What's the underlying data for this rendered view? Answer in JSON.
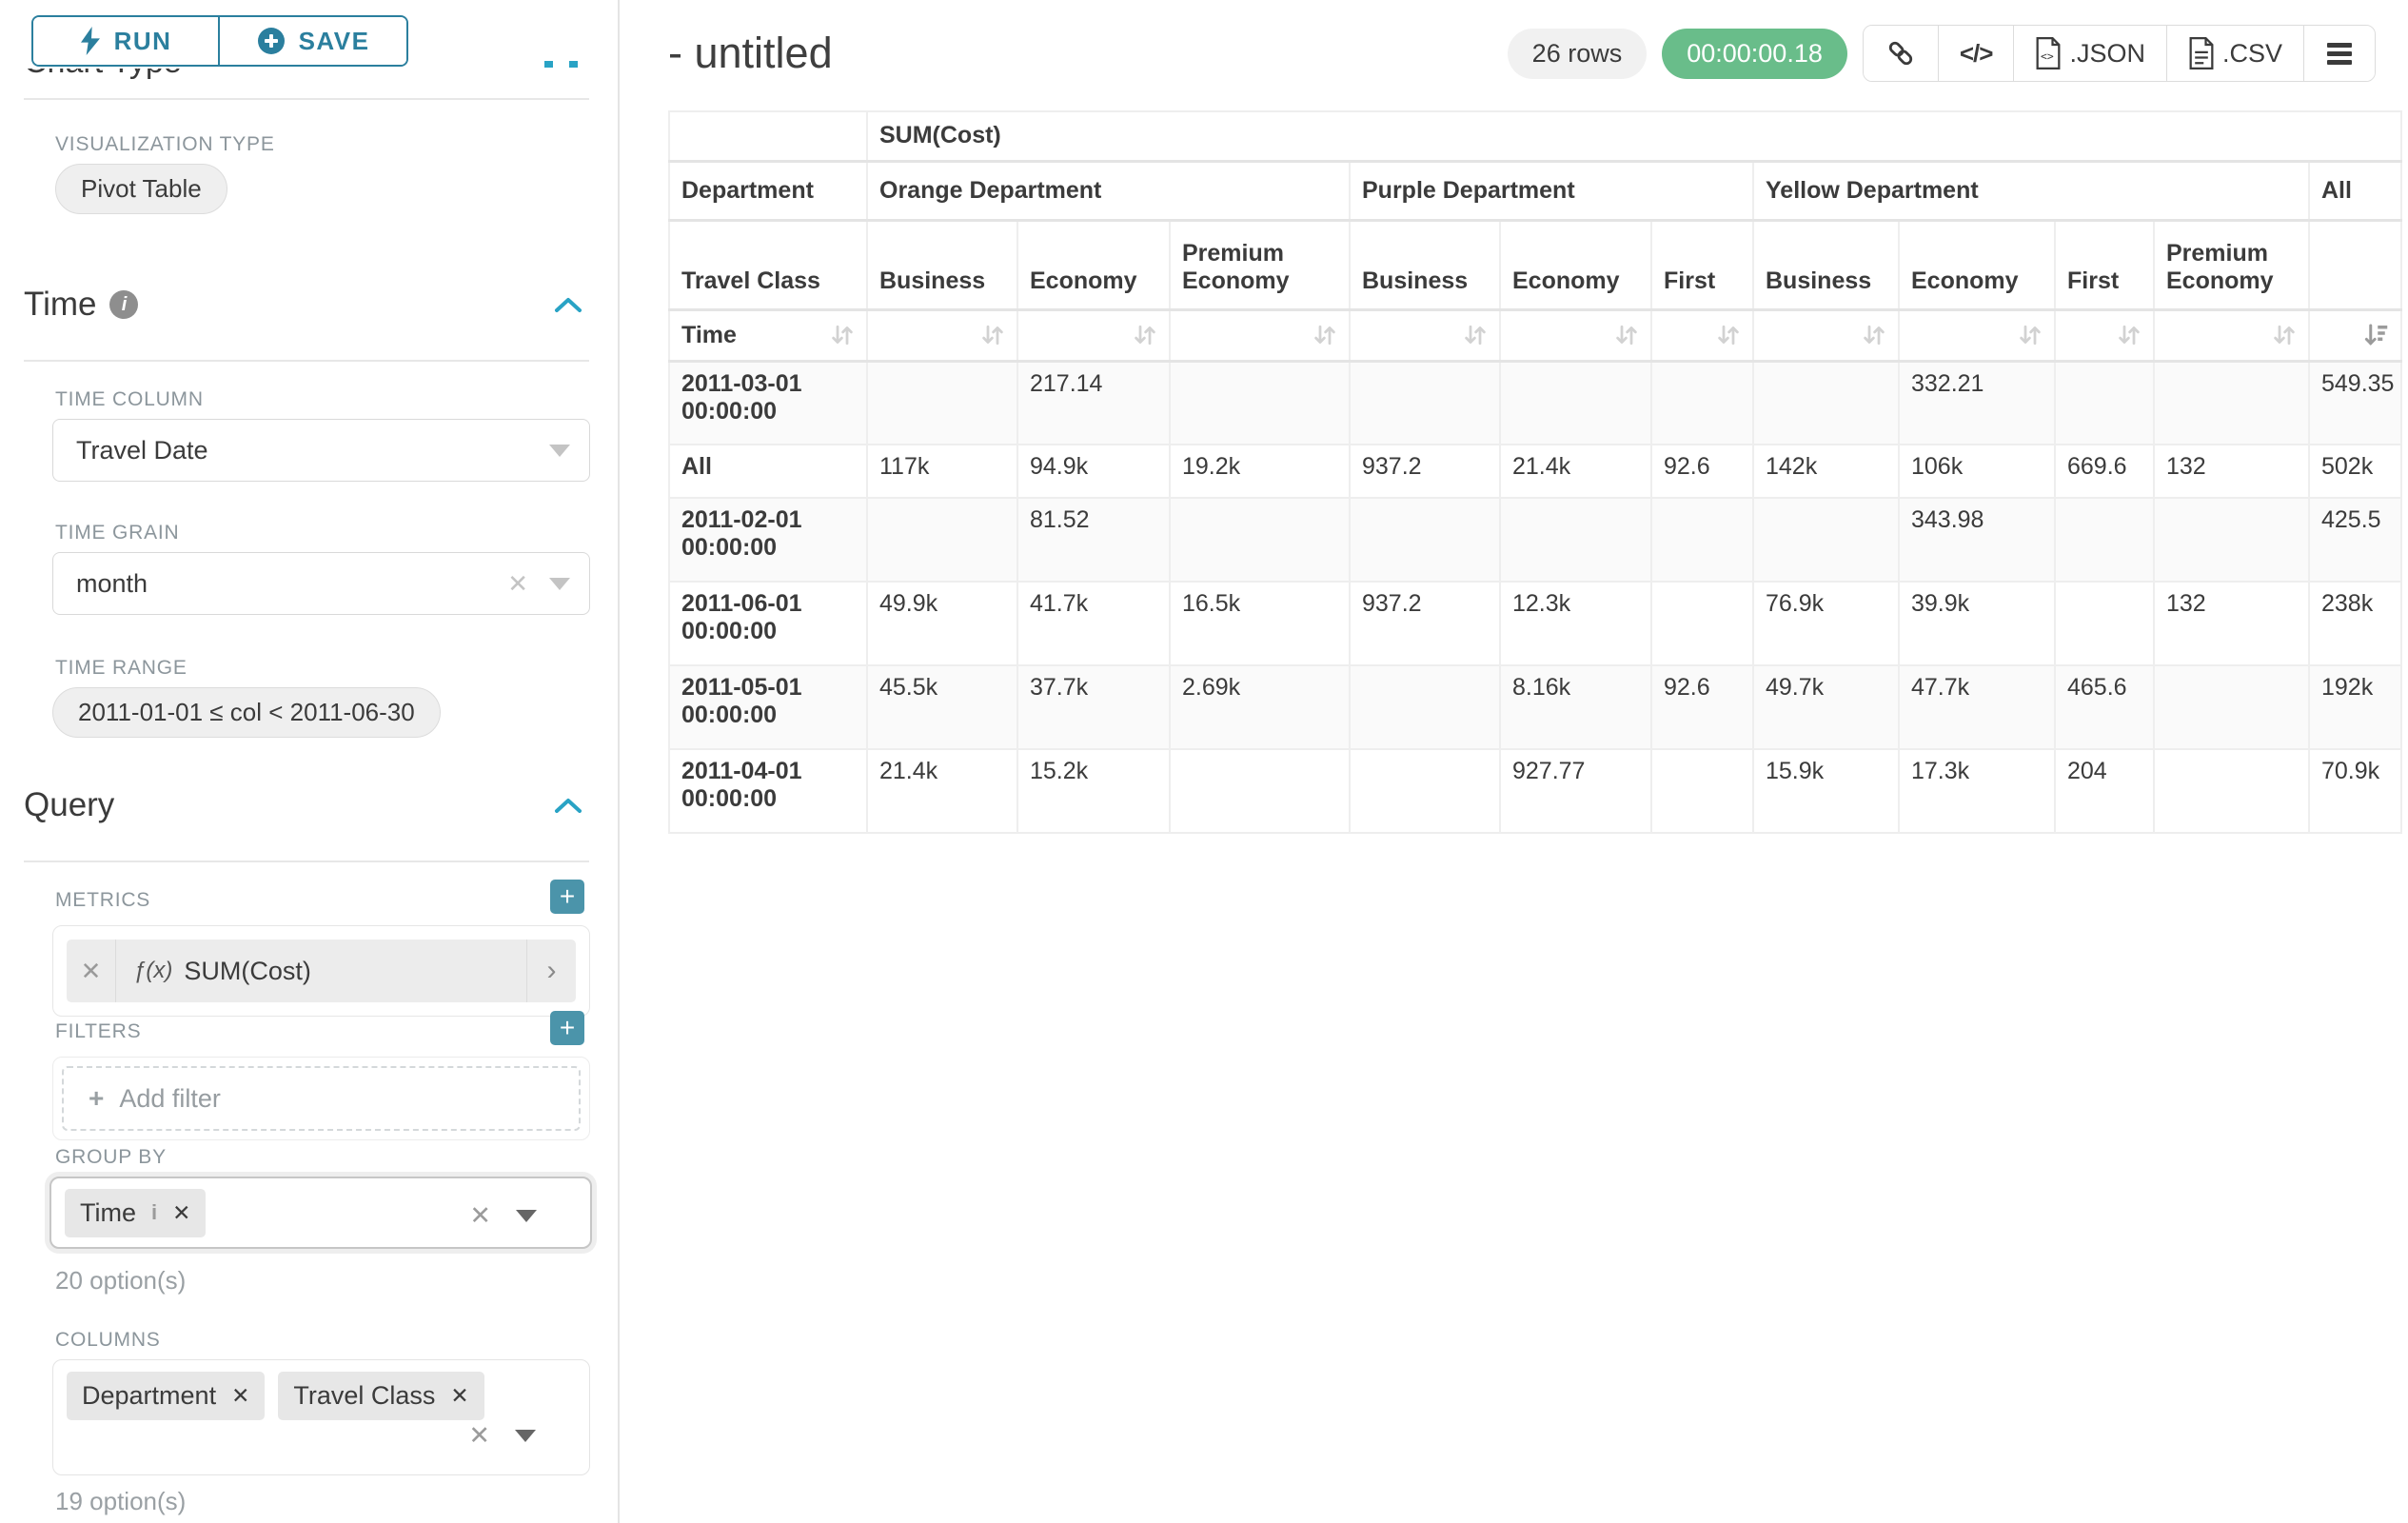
{
  "toolbar": {
    "run_label": "RUN",
    "save_label": "SAVE"
  },
  "sidebar": {
    "chart_type_heading": "Chart Type",
    "visualization_type_label": "VISUALIZATION TYPE",
    "visualization_type_value": "Pivot Table",
    "time_section": {
      "title": "Time",
      "time_column_label": "TIME COLUMN",
      "time_column_value": "Travel Date",
      "time_grain_label": "TIME GRAIN",
      "time_grain_value": "month",
      "time_range_label": "TIME RANGE",
      "time_range_value": "2011-01-01 ≤ col < 2011-06-30"
    },
    "query_section": {
      "title": "Query",
      "metrics_label": "METRICS",
      "metric_fx": "ƒ(x)",
      "metric_value": "SUM(Cost)",
      "filters_label": "FILTERS",
      "add_filter_label": "Add filter",
      "group_by_label": "GROUP BY",
      "group_by_chips": [
        "Time"
      ],
      "group_by_options_note": "20 option(s)",
      "columns_label": "COLUMNS",
      "columns_chips": [
        "Department",
        "Travel Class"
      ],
      "columns_options_note": "19 option(s)"
    }
  },
  "header": {
    "title": "- untitled",
    "rows_badge": "26 rows",
    "timer": "00:00:00.18",
    "json_label": ".JSON",
    "csv_label": ".CSV"
  },
  "icons": {
    "run": "lightning-bolt",
    "save": "plus-circle",
    "metrics_add": "plus-square",
    "filters_add": "plus-square",
    "section_collapse": "chevron-up",
    "time_info": "info-circle",
    "share": "link",
    "embed": "code",
    "json_export": "file-json",
    "csv_export": "file-csv",
    "menu": "hamburger",
    "sort": "sort-arrows",
    "sort_active": "sort-descending"
  },
  "pivot": {
    "metric_header": "SUM(Cost)",
    "department_label": "Department",
    "travel_class_label": "Travel Class",
    "time_label": "Time",
    "departments": [
      {
        "name": "Orange Department",
        "span": 3
      },
      {
        "name": "Purple Department",
        "span": 3
      },
      {
        "name": "Yellow Department",
        "span": 4
      },
      {
        "name": "All",
        "span": 1
      }
    ],
    "travel_classes": [
      "Business",
      "Economy",
      "Premium Economy",
      "Business",
      "Economy",
      "First",
      "Business",
      "Economy",
      "First",
      "Premium Economy",
      ""
    ],
    "rows": [
      {
        "label": "2011-03-01 00:00:00",
        "tall": true,
        "values": [
          "",
          "217.14",
          "",
          "",
          "",
          "",
          "",
          "332.21",
          "",
          "",
          "549.35"
        ]
      },
      {
        "label": "All",
        "tall": false,
        "values": [
          "117k",
          "94.9k",
          "19.2k",
          "937.2",
          "21.4k",
          "92.6",
          "142k",
          "106k",
          "669.6",
          "132",
          "502k"
        ]
      },
      {
        "label": "2011-02-01 00:00:00",
        "tall": true,
        "values": [
          "",
          "81.52",
          "",
          "",
          "",
          "",
          "",
          "343.98",
          "",
          "",
          "425.5"
        ]
      },
      {
        "label": "2011-06-01 00:00:00",
        "tall": true,
        "values": [
          "49.9k",
          "41.7k",
          "16.5k",
          "937.2",
          "12.3k",
          "",
          "76.9k",
          "39.9k",
          "",
          "132",
          "238k"
        ]
      },
      {
        "label": "2011-05-01 00:00:00",
        "tall": true,
        "values": [
          "45.5k",
          "37.7k",
          "2.69k",
          "",
          "8.16k",
          "92.6",
          "49.7k",
          "47.7k",
          "465.6",
          "",
          "192k"
        ]
      },
      {
        "label": "2011-04-01 00:00:00",
        "tall": true,
        "values": [
          "21.4k",
          "15.2k",
          "",
          "",
          "927.77",
          "",
          "15.9k",
          "17.3k",
          "204",
          "",
          "70.9k"
        ]
      }
    ]
  }
}
